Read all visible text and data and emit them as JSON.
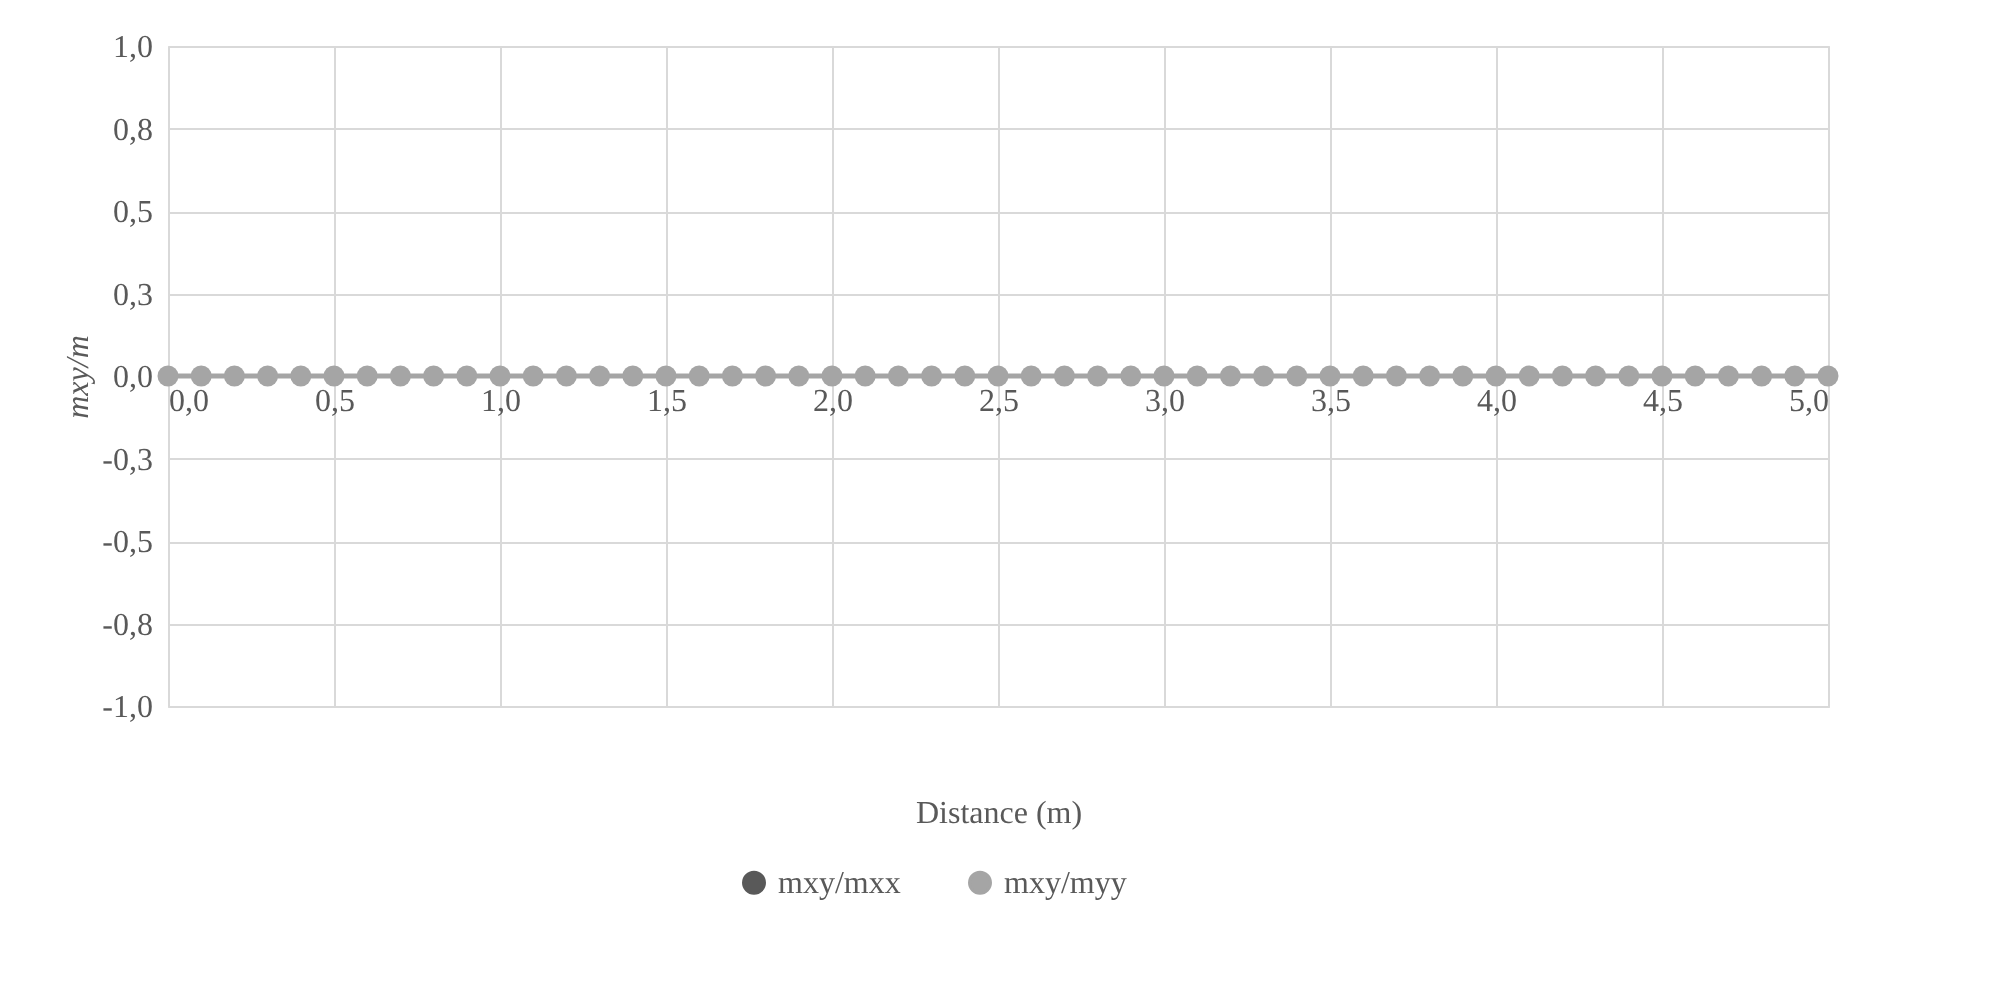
{
  "chart_data": {
    "type": "line",
    "xlabel": "Distance (m)",
    "ylabel": "mxy/m",
    "x": [
      0.0,
      0.1,
      0.2,
      0.3,
      0.4,
      0.5,
      0.6,
      0.7,
      0.8,
      0.9,
      1.0,
      1.1,
      1.2,
      1.3,
      1.4,
      1.5,
      1.6,
      1.7,
      1.8,
      1.9,
      2.0,
      2.1,
      2.2,
      2.3,
      2.4,
      2.5,
      2.6,
      2.7,
      2.8,
      2.9,
      3.0,
      3.1,
      3.2,
      3.3,
      3.4,
      3.5,
      3.6,
      3.7,
      3.8,
      3.9,
      4.0,
      4.1,
      4.2,
      4.3,
      4.4,
      4.5,
      4.6,
      4.7,
      4.8,
      4.9,
      5.0
    ],
    "series": [
      {
        "name": "mxy/mxx",
        "color": "#595959",
        "values": [
          null,
          null,
          null,
          null,
          null,
          null,
          null,
          null,
          null,
          null,
          null,
          null,
          null,
          null,
          null,
          null,
          null,
          null,
          null,
          null,
          null,
          null,
          null,
          null,
          null,
          null,
          null,
          null,
          null,
          null,
          null,
          null,
          null,
          null,
          null,
          null,
          null,
          null,
          null,
          null,
          null,
          null,
          null,
          null,
          null,
          null,
          null,
          null,
          null,
          null,
          null
        ]
      },
      {
        "name": "mxy/myy",
        "color": "#a5a5a5",
        "values": [
          0,
          0,
          0,
          0,
          0,
          0,
          0,
          0,
          0,
          0,
          0,
          0,
          0,
          0,
          0,
          0,
          0,
          0,
          0,
          0,
          0,
          0,
          0,
          0,
          0,
          0,
          0,
          0,
          0,
          0,
          0,
          0,
          0,
          0,
          0,
          0,
          0,
          0,
          0,
          0,
          0,
          0,
          0,
          0,
          0,
          0,
          0,
          0,
          0,
          0,
          0
        ]
      }
    ],
    "xlim": [
      0,
      5
    ],
    "ylim": [
      -1,
      1
    ],
    "xticks": [
      {
        "value": 0,
        "label": "0,0"
      },
      {
        "value": 0.5,
        "label": "0,5"
      },
      {
        "value": 1,
        "label": "1,0"
      },
      {
        "value": 1.5,
        "label": "1,5"
      },
      {
        "value": 2,
        "label": "2,0"
      },
      {
        "value": 2.5,
        "label": "2,5"
      },
      {
        "value": 3,
        "label": "3,0"
      },
      {
        "value": 3.5,
        "label": "3,5"
      },
      {
        "value": 4,
        "label": "4,0"
      },
      {
        "value": 4.5,
        "label": "4,5"
      },
      {
        "value": 5,
        "label": "5,0"
      }
    ],
    "yticks": [
      {
        "value": -1,
        "label": "-1,0"
      },
      {
        "value": -0.75,
        "label": "-0,8"
      },
      {
        "value": -0.5,
        "label": "-0,5"
      },
      {
        "value": -0.25,
        "label": "-0,3"
      },
      {
        "value": 0,
        "label": "0,0"
      },
      {
        "value": 0.25,
        "label": "0,3"
      },
      {
        "value": 0.5,
        "label": "0,5"
      },
      {
        "value": 0.75,
        "label": "0,8"
      },
      {
        "value": 1,
        "label": "1,0"
      }
    ],
    "grid": true,
    "legend": "bottom",
    "marker": "circle",
    "line_style": "solid"
  }
}
